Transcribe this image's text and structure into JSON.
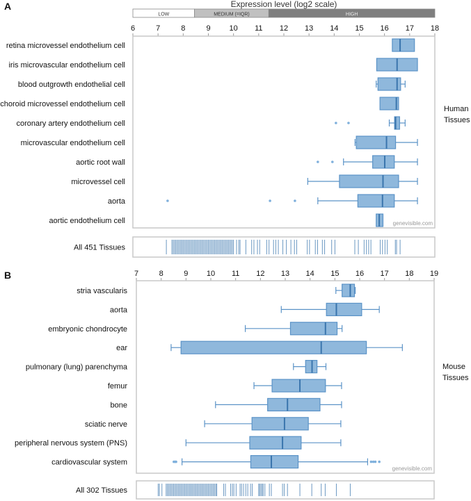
{
  "chart_data": [
    {
      "type": "box",
      "panel_label": "A",
      "title": "Expression level (log2 scale)",
      "legend_bands": [
        {
          "label": "LOW",
          "from": 6,
          "to": 8.45,
          "color": "#ffffff"
        },
        {
          "label": "MEDIUM (=IQR)",
          "from": 8.45,
          "to": 11.4,
          "color": "#c0c0c0"
        },
        {
          "label": "HIGH",
          "from": 11.4,
          "to": 18,
          "color": "#7f7f7f"
        }
      ],
      "xlim": [
        6,
        18
      ],
      "ticks": [
        6,
        7,
        8,
        9,
        10,
        11,
        12,
        13,
        14,
        15,
        16,
        17,
        18
      ],
      "group_label": [
        "Human",
        "Tissues"
      ],
      "watermark": "genevisible.com",
      "series": [
        {
          "name": "retina microvessel endothelium cell",
          "whisker_low": null,
          "q1": 16.31,
          "median": 16.62,
          "q3": 17.19,
          "whisker_high": null,
          "outliers": []
        },
        {
          "name": "iris microvascular endothelium cell",
          "whisker_low": null,
          "q1": 15.69,
          "median": 16.5,
          "q3": 17.31,
          "whisker_high": null,
          "outliers": []
        },
        {
          "name": "blood outgrowth endothelial cell",
          "whisker_low": 15.67,
          "q1": 15.74,
          "median": 16.5,
          "q3": 16.64,
          "whisker_high": 16.82,
          "outliers": []
        },
        {
          "name": "choroid microvessel endothelium cell",
          "whisker_low": null,
          "q1": 15.82,
          "median": 16.47,
          "q3": 16.56,
          "whisker_high": null,
          "outliers": []
        },
        {
          "name": "coronary artery endothelium cell",
          "whisker_low": 16.19,
          "q1": 16.4,
          "median": 16.44,
          "q3": 16.6,
          "whisker_high": 16.82,
          "outliers": [
            14.07,
            14.57
          ]
        },
        {
          "name": "microvascular endothelium cell",
          "whisker_low": 14.83,
          "q1": 14.88,
          "median": 16.08,
          "q3": 16.44,
          "whisker_high": 17.31,
          "outliers": []
        },
        {
          "name": "aortic root wall",
          "whisker_low": 14.37,
          "q1": 15.53,
          "median": 16.01,
          "q3": 16.39,
          "whisker_high": 17.31,
          "outliers": [
            13.35,
            13.93
          ]
        },
        {
          "name": "microvessel cell",
          "whisker_low": 12.95,
          "q1": 14.21,
          "median": 15.94,
          "q3": 16.56,
          "whisker_high": 17.31,
          "outliers": []
        },
        {
          "name": "aorta",
          "whisker_low": 13.35,
          "q1": 14.94,
          "median": 15.92,
          "q3": 16.39,
          "whisker_high": 17.31,
          "outliers": [
            7.38,
            11.45,
            12.44
          ]
        },
        {
          "name": "aortic endothelium cell",
          "whisker_low": null,
          "q1": 15.67,
          "median": 15.79,
          "q3": 15.94,
          "whisker_high": null,
          "outliers": []
        }
      ],
      "rug": {
        "label": "All 451 Tissues",
        "values": [
          7.33,
          7.55,
          7.6,
          7.65,
          7.7,
          7.75,
          7.8,
          7.85,
          7.9,
          7.95,
          8.0,
          8.05,
          8.1,
          8.15,
          8.2,
          8.25,
          8.3,
          8.35,
          8.4,
          8.45,
          8.5,
          8.55,
          8.6,
          8.65,
          8.7,
          8.75,
          8.8,
          8.85,
          8.9,
          8.95,
          9.0,
          9.05,
          9.1,
          9.15,
          9.2,
          9.25,
          9.3,
          9.35,
          9.4,
          9.45,
          9.5,
          9.55,
          9.6,
          9.65,
          9.7,
          9.75,
          9.8,
          9.85,
          9.9,
          9.95,
          10.0,
          10.12,
          10.21,
          10.26,
          10.49,
          10.72,
          10.81,
          10.95,
          11.04,
          11.32,
          11.41,
          11.59,
          11.68,
          11.78,
          11.96,
          12.1,
          12.28,
          12.42,
          12.51,
          12.93,
          13.02,
          13.25,
          13.34,
          13.53,
          13.62,
          13.9,
          14.03,
          14.82,
          14.96,
          15.19,
          15.28,
          15.37,
          15.46,
          15.83,
          15.92,
          16.02,
          16.11,
          16.43,
          16.48,
          16.62
        ]
      }
    },
    {
      "type": "box",
      "panel_label": "B",
      "xlim": [
        7,
        19
      ],
      "ticks": [
        7,
        8,
        9,
        10,
        11,
        12,
        13,
        14,
        15,
        16,
        17,
        18,
        19
      ],
      "group_label": [
        "Mouse",
        "Tissues"
      ],
      "watermark": "genevisible.com",
      "series": [
        {
          "name": "stria vascularis",
          "whisker_low": 15.04,
          "q1": 15.29,
          "median": 15.62,
          "q3": 15.79,
          "whisker_high": 15.82,
          "outliers": []
        },
        {
          "name": "aorta",
          "whisker_low": 12.84,
          "q1": 14.66,
          "median": 15.06,
          "q3": 16.08,
          "whisker_high": 16.79,
          "outliers": []
        },
        {
          "name": "embryonic chondrocyte",
          "whisker_low": 11.39,
          "q1": 13.21,
          "median": 14.62,
          "q3": 15.09,
          "whisker_high": 15.29,
          "outliers": []
        },
        {
          "name": "ear",
          "whisker_low": 8.4,
          "q1": 8.8,
          "median": 14.45,
          "q3": 16.27,
          "whisker_high": 17.72,
          "outliers": []
        },
        {
          "name": "pulmonary (lung) parenchyma",
          "whisker_low": 13.33,
          "q1": 13.82,
          "median": 14.08,
          "q3": 14.28,
          "whisker_high": 14.64,
          "outliers": []
        },
        {
          "name": "femur",
          "whisker_low": 11.74,
          "q1": 12.47,
          "median": 13.59,
          "q3": 14.62,
          "whisker_high": 15.27,
          "outliers": []
        },
        {
          "name": "bone",
          "whisker_low": 10.19,
          "q1": 12.29,
          "median": 13.09,
          "q3": 14.4,
          "whisker_high": 15.27,
          "outliers": []
        },
        {
          "name": "sciatic nerve",
          "whisker_low": 9.75,
          "q1": 11.66,
          "median": 12.97,
          "q3": 13.93,
          "whisker_high": 15.24,
          "outliers": []
        },
        {
          "name": "peripheral nervous system (PNS)",
          "whisker_low": 9.0,
          "q1": 11.57,
          "median": 12.89,
          "q3": 13.64,
          "whisker_high": 15.24,
          "outliers": []
        },
        {
          "name": "cardiovascular system",
          "whisker_low": 8.84,
          "q1": 11.61,
          "median": 12.44,
          "q3": 13.52,
          "whisker_high": 16.32,
          "outliers": [
            8.51,
            8.56,
            8.6,
            16.46,
            16.55,
            16.63,
            16.79
          ]
        }
      ],
      "rug": {
        "label": "All 302 Tissues",
        "values": [
          7.88,
          7.93,
          8.03,
          8.2,
          8.25,
          8.3,
          8.35,
          8.4,
          8.45,
          8.5,
          8.55,
          8.6,
          8.65,
          8.7,
          8.75,
          8.8,
          8.85,
          8.9,
          8.95,
          9.0,
          9.05,
          9.1,
          9.15,
          9.2,
          9.25,
          9.3,
          9.35,
          9.4,
          9.45,
          9.5,
          9.55,
          9.6,
          9.65,
          9.7,
          9.75,
          9.8,
          9.85,
          9.9,
          9.95,
          10.0,
          10.05,
          10.1,
          10.15,
          10.2,
          10.24,
          10.52,
          10.59,
          10.8,
          10.87,
          10.93,
          11.02,
          11.18,
          11.24,
          11.32,
          11.41,
          11.49,
          11.6,
          11.67,
          11.93,
          11.97,
          12.02,
          12.07,
          12.11,
          12.18,
          12.36,
          12.44,
          12.89,
          12.96,
          13.09,
          13.59,
          14.07,
          14.45,
          14.61,
          15.06,
          15.62
        ]
      }
    }
  ],
  "colors": {
    "box_fill": "#8fb8dc",
    "box_stroke": "#5b93c7",
    "median": "#3a75ad",
    "rug": "#3a75ad",
    "frame": "#c8c8c8"
  }
}
